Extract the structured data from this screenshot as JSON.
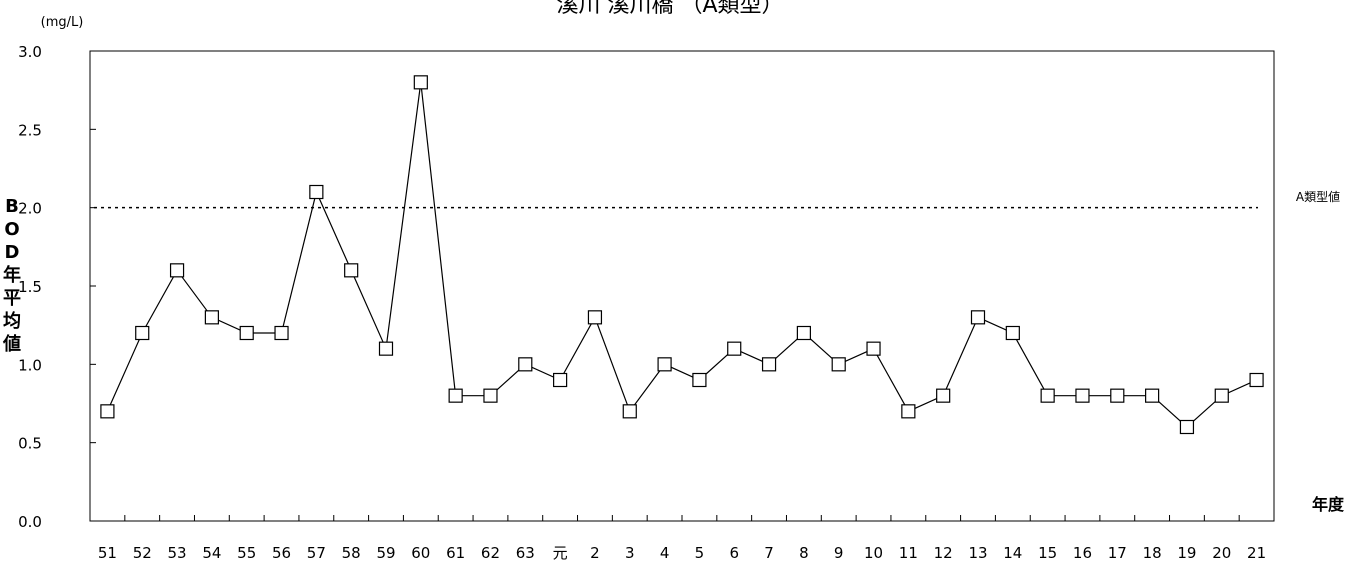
{
  "chart_data": {
    "type": "line",
    "title": "溪川 溪川橋 （A類型）",
    "unit": "(mg/L)",
    "ylabel": "BOD年平均値",
    "xlabel": "年度",
    "categories": [
      "51",
      "52",
      "53",
      "54",
      "55",
      "56",
      "57",
      "58",
      "59",
      "60",
      "61",
      "62",
      "63",
      "元",
      "2",
      "3",
      "4",
      "5",
      "6",
      "7",
      "8",
      "9",
      "10",
      "11",
      "12",
      "13",
      "14",
      "15",
      "16",
      "17",
      "18",
      "19",
      "20",
      "21"
    ],
    "series": [
      {
        "values": [
          0.7,
          1.2,
          1.6,
          1.3,
          1.2,
          1.2,
          2.1,
          1.6,
          1.1,
          2.8,
          0.8,
          0.8,
          1.0,
          0.9,
          1.3,
          0.7,
          1.0,
          0.9,
          1.1,
          1.0,
          1.2,
          1.0,
          1.1,
          0.7,
          0.8,
          1.3,
          1.2,
          0.8,
          0.8,
          0.8,
          0.8,
          0.6,
          0.8,
          0.9
        ]
      }
    ],
    "ylim": [
      0,
      3.0
    ],
    "yticks": [
      "0.0",
      "0.5",
      "1.0",
      "1.5",
      "2.0",
      "2.5",
      "3.0"
    ],
    "reference_line": {
      "value": 2.0,
      "label": "A類型値"
    },
    "grid": false,
    "legend": "none",
    "marker": "square"
  }
}
